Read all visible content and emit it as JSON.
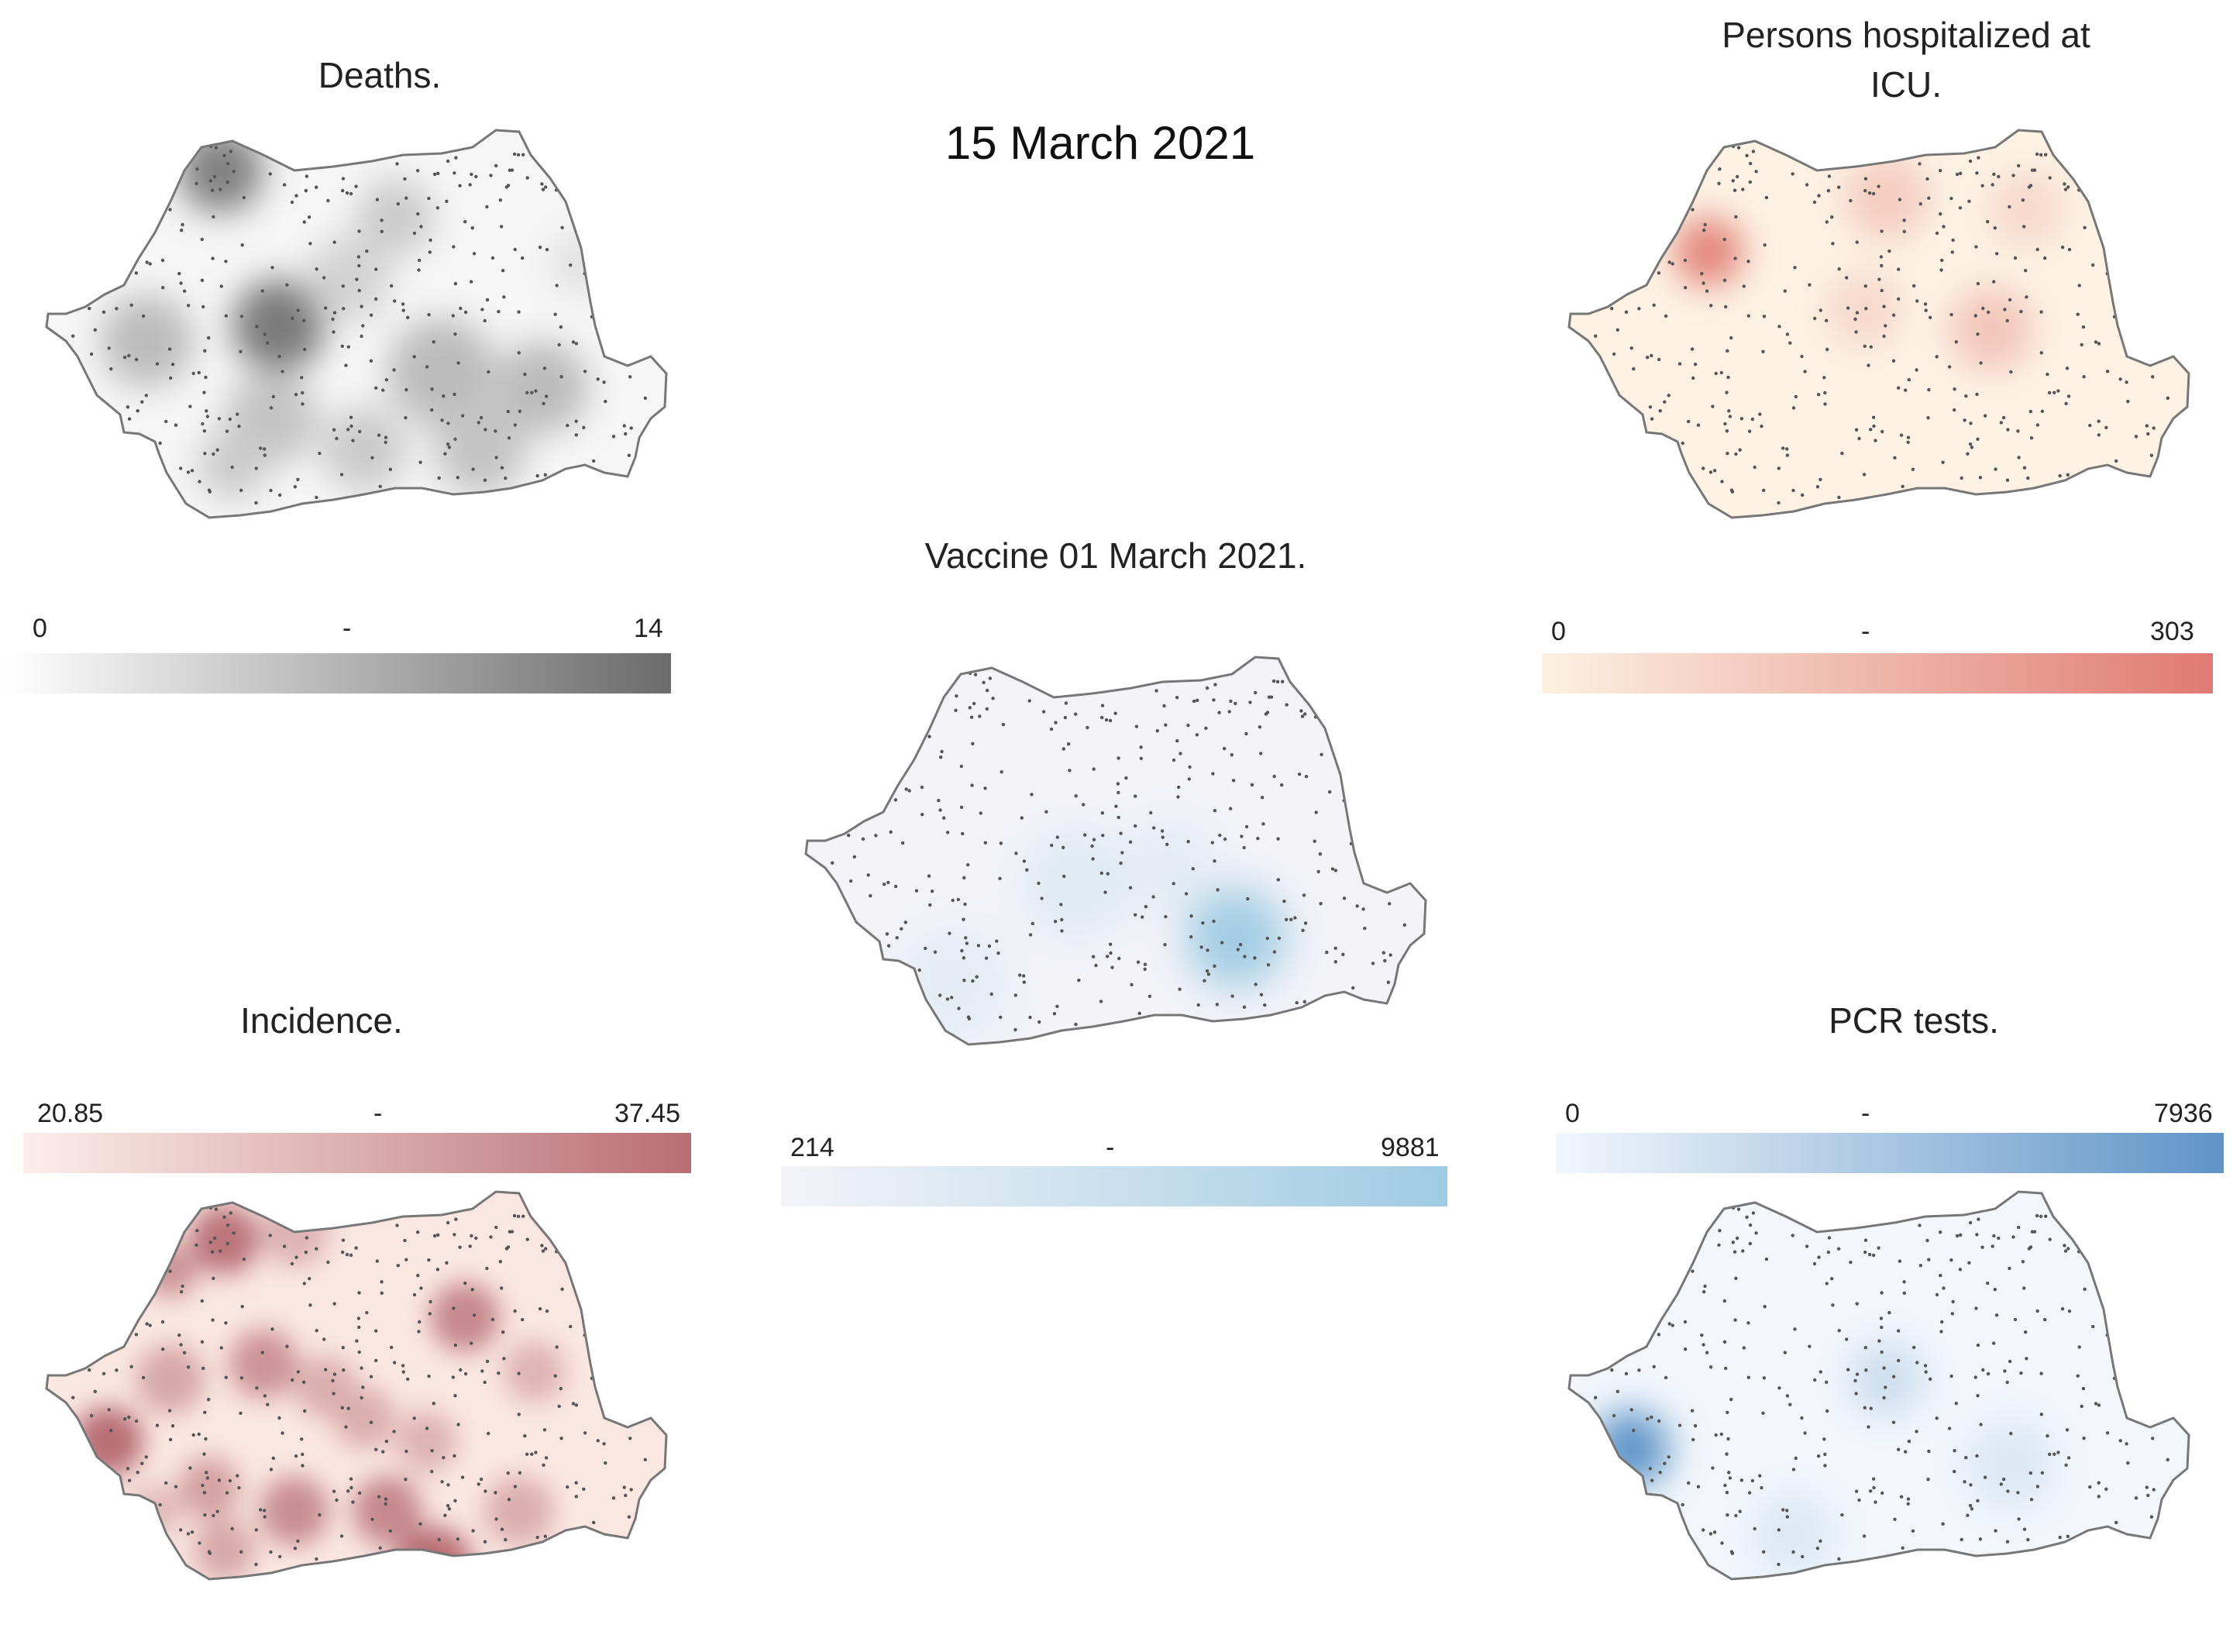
{
  "date_title": "15 March 2021",
  "panels": {
    "deaths": {
      "title": "Deaths.",
      "legend": {
        "min": "0",
        "mid": "-",
        "max": "14"
      },
      "colors": {
        "low": "#ffffff",
        "high": "#6b6b6b"
      }
    },
    "icu": {
      "title_line1": "Persons hospitalized at",
      "title_line2": "ICU.",
      "legend": {
        "min": "0",
        "mid": "-",
        "max": "303"
      },
      "colors": {
        "low": "#fdf1e2",
        "high": "#e07a72"
      }
    },
    "vaccine": {
      "title": "Vaccine 01 March 2021.",
      "legend": {
        "min": "214",
        "mid": "-",
        "max": "9881"
      },
      "colors": {
        "low": "#f4f4f8",
        "high": "#9fcbe3"
      }
    },
    "incidence": {
      "title": "Incidence.",
      "legend": {
        "min": "20.85",
        "mid": "-",
        "max": "37.45"
      },
      "colors": {
        "low": "#fdeeea",
        "high": "#b86e74"
      }
    },
    "pcr": {
      "title": "PCR tests.",
      "legend": {
        "min": "0",
        "mid": "-",
        "max": "7936"
      },
      "colors": {
        "low": "#f2f7fc",
        "high": "#5f94c8"
      }
    }
  },
  "border_color": "#777777"
}
